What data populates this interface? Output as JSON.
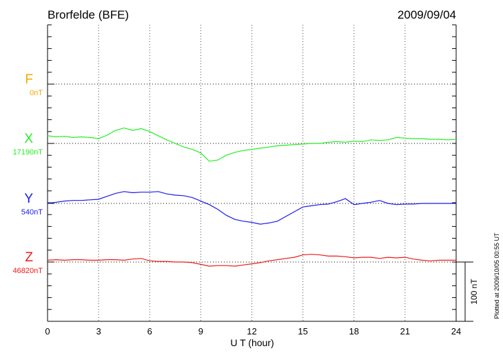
{
  "chart_data": {
    "type": "line",
    "title": "Brorfelde (BFE)",
    "date": "2009/09/04",
    "xlabel": "U T (hour)",
    "xlim": [
      0,
      24
    ],
    "xticks": [
      0,
      3,
      6,
      9,
      12,
      15,
      18,
      21,
      24
    ],
    "x_step_hours": 0.5,
    "scale_bar": "100 nT",
    "scale_bar_nT": 100,
    "tick_interval_nT": 20,
    "plotted_at": "Plotted at 2009/10/05 00:55 UT",
    "grid": "dotted at 3-hour intervals and at each component baseline",
    "series": [
      {
        "name": "F",
        "baseline_label": "0nT",
        "baseline": 0,
        "color": "#f5a800",
        "values": []
      },
      {
        "name": "X",
        "baseline_label": "17190nT",
        "baseline": 17190,
        "color": "#22ee22",
        "values": [
          17203,
          17201,
          17202,
          17200,
          17201,
          17200,
          17198,
          17204,
          17212,
          17216,
          17212,
          17215,
          17210,
          17203,
          17196,
          17190,
          17184,
          17180,
          17174,
          17160,
          17162,
          17170,
          17175,
          17178,
          17180,
          17182,
          17184,
          17186,
          17187,
          17188,
          17189,
          17190,
          17190,
          17192,
          17193,
          17192,
          17194,
          17193,
          17196,
          17195,
          17196,
          17200,
          17199,
          17198,
          17198,
          17197,
          17197,
          17196,
          17197
        ]
      },
      {
        "name": "Y",
        "baseline_label": "540nT",
        "baseline": 540,
        "color": "#1a1aee",
        "values": [
          540,
          542,
          544,
          545,
          545,
          546,
          547,
          552,
          557,
          560,
          558,
          559,
          559,
          560,
          556,
          554,
          553,
          550,
          544,
          538,
          530,
          520,
          513,
          510,
          508,
          505,
          507,
          510,
          518,
          526,
          534,
          536,
          538,
          539,
          543,
          548,
          538,
          540,
          542,
          545,
          540,
          538,
          539,
          539,
          540,
          540,
          540,
          540,
          540
        ]
      },
      {
        "name": "Z",
        "baseline_label": "46820nT",
        "baseline": 46820,
        "color": "#ee1a1a",
        "values": [
          46823,
          46824,
          46823,
          46824,
          46824,
          46823,
          46823,
          46824,
          46824,
          46823,
          46825,
          46826,
          46822,
          46821,
          46821,
          46820,
          46820,
          46819,
          46816,
          46813,
          46814,
          46814,
          46813,
          46815,
          46817,
          46819,
          46822,
          46824,
          46826,
          46828,
          46832,
          46833,
          46832,
          46830,
          46830,
          46829,
          46827,
          46828,
          46828,
          46826,
          46828,
          46827,
          46828,
          46825,
          46823,
          46822,
          46823,
          46823,
          46823
        ]
      }
    ]
  }
}
